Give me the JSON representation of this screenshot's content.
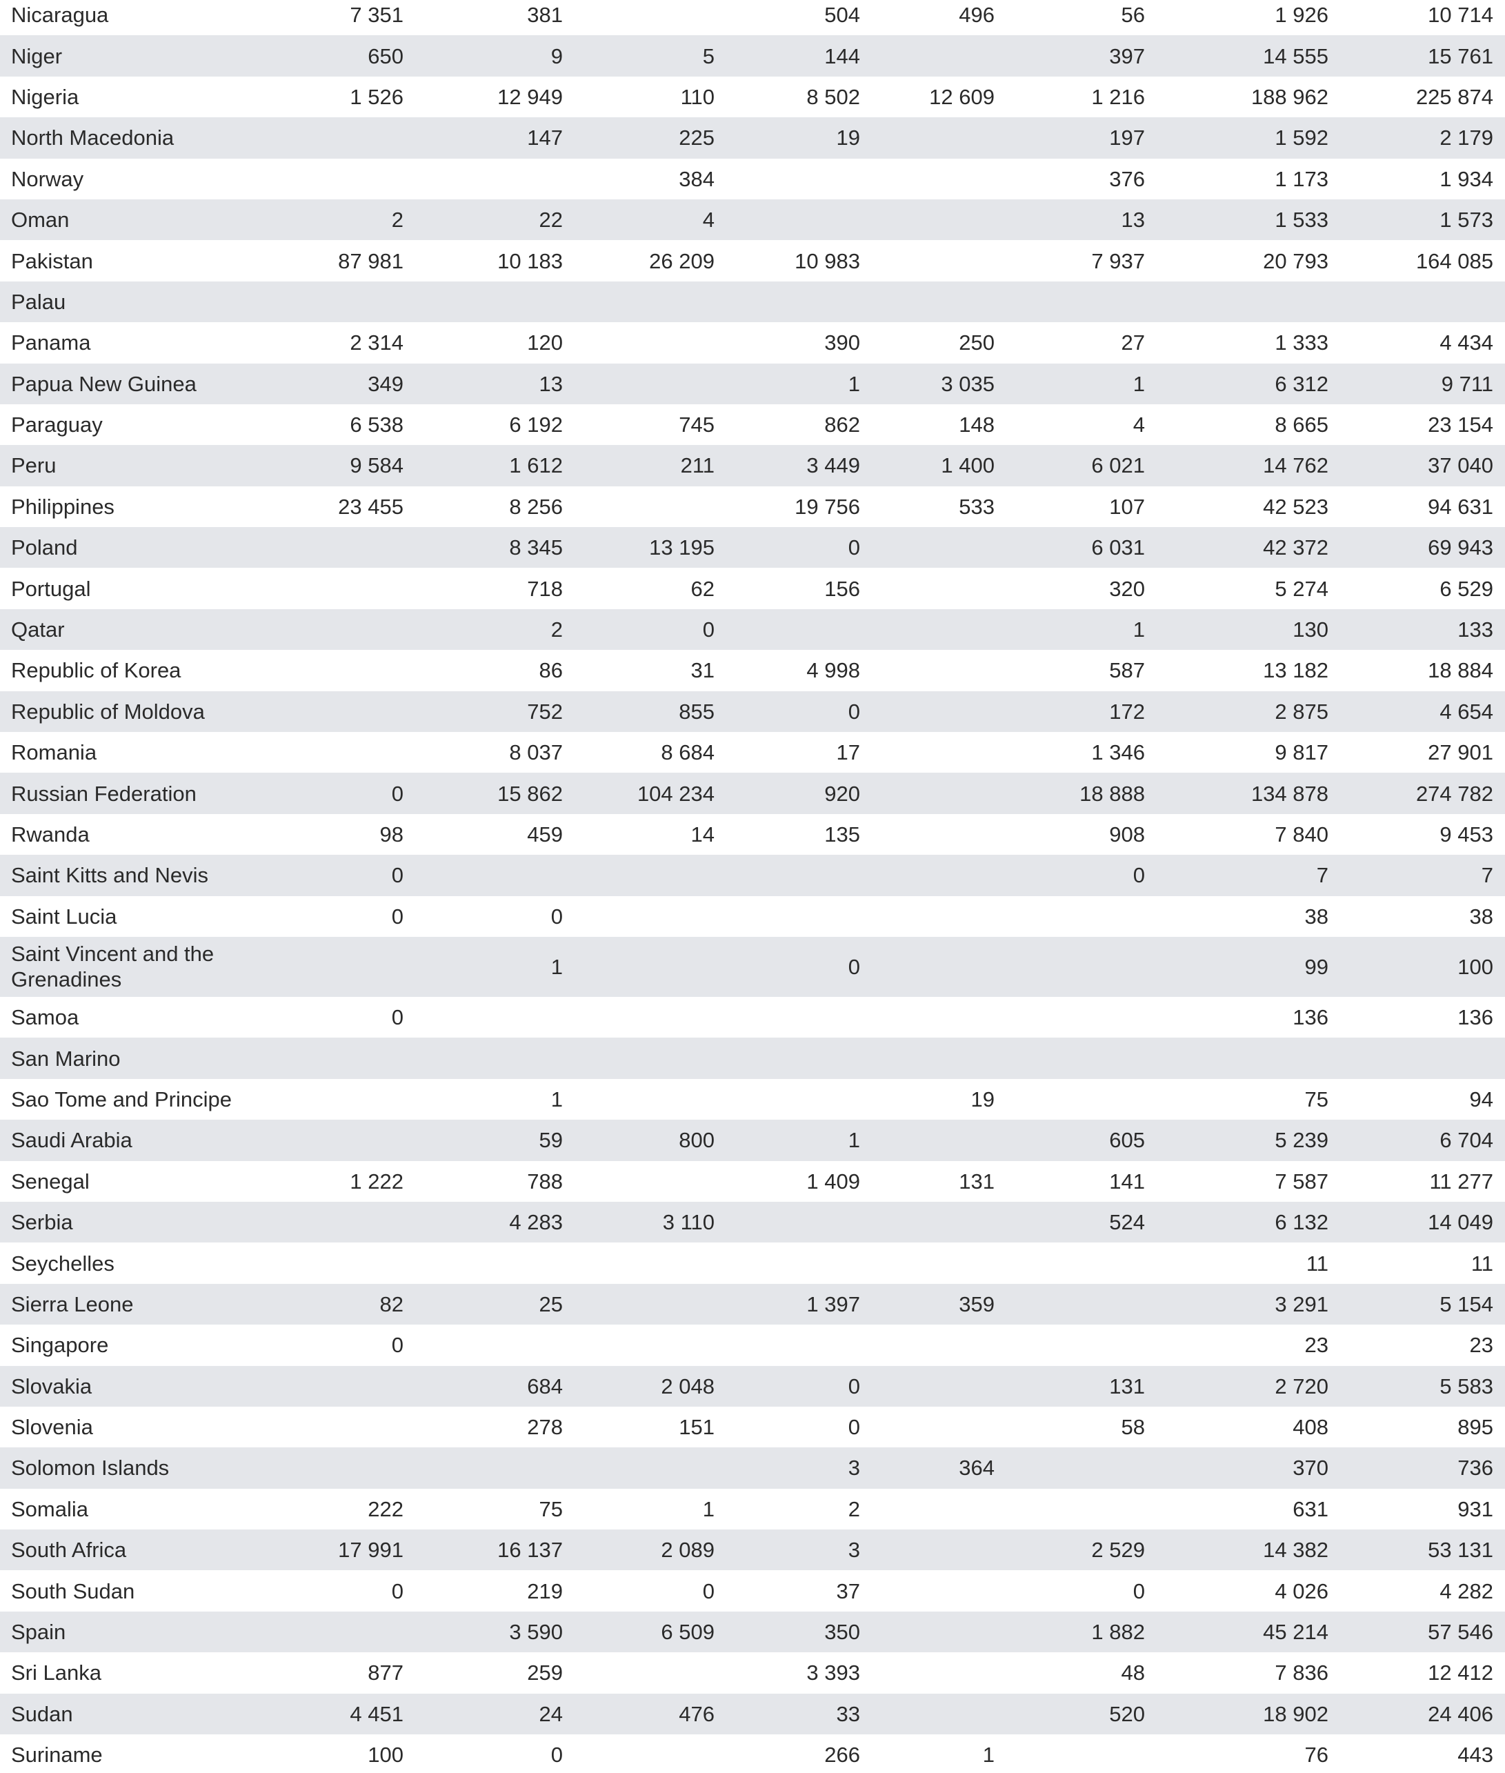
{
  "table": {
    "rows": [
      [
        "Nicaragua",
        "7 351",
        "381",
        null,
        "504",
        "496",
        "56",
        "1 926",
        "10 714"
      ],
      [
        "Niger",
        "650",
        "9",
        "5",
        "144",
        null,
        "397",
        "14 555",
        "15 761"
      ],
      [
        "Nigeria",
        "1 526",
        "12 949",
        "110",
        "8 502",
        "12 609",
        "1 216",
        "188 962",
        "225 874"
      ],
      [
        "North Macedonia",
        null,
        "147",
        "225",
        "19",
        null,
        "197",
        "1 592",
        "2 179"
      ],
      [
        "Norway",
        null,
        null,
        "384",
        null,
        null,
        "376",
        "1 173",
        "1 934"
      ],
      [
        "Oman",
        "2",
        "22",
        "4",
        null,
        null,
        "13",
        "1 533",
        "1 573"
      ],
      [
        "Pakistan",
        "87 981",
        "10 183",
        "26 209",
        "10 983",
        null,
        "7 937",
        "20 793",
        "164 085"
      ],
      [
        "Palau",
        null,
        null,
        null,
        null,
        null,
        null,
        null,
        null
      ],
      [
        "Panama",
        "2 314",
        "120",
        null,
        "390",
        "250",
        "27",
        "1 333",
        "4 434"
      ],
      [
        "Papua New Guinea",
        "349",
        "13",
        null,
        "1",
        "3 035",
        "1",
        "6 312",
        "9 711"
      ],
      [
        "Paraguay",
        "6 538",
        "6 192",
        "745",
        "862",
        "148",
        "4",
        "8 665",
        "23 154"
      ],
      [
        "Peru",
        "9 584",
        "1 612",
        "211",
        "3 449",
        "1 400",
        "6 021",
        "14 762",
        "37 040"
      ],
      [
        "Philippines",
        "23 455",
        "8 256",
        null,
        "19 756",
        "533",
        "107",
        "42 523",
        "94 631"
      ],
      [
        "Poland",
        null,
        "8 345",
        "13 195",
        "0",
        null,
        "6 031",
        "42 372",
        "69 943"
      ],
      [
        "Portugal",
        null,
        "718",
        "62",
        "156",
        null,
        "320",
        "5 274",
        "6 529"
      ],
      [
        "Qatar",
        null,
        "2",
        "0",
        null,
        null,
        "1",
        "130",
        "133"
      ],
      [
        "Republic of Korea",
        null,
        "86",
        "31",
        "4 998",
        null,
        "587",
        "13 182",
        "18 884"
      ],
      [
        "Republic of Moldova",
        null,
        "752",
        "855",
        "0",
        null,
        "172",
        "2 875",
        "4 654"
      ],
      [
        "Romania",
        null,
        "8 037",
        "8 684",
        "17",
        null,
        "1 346",
        "9 817",
        "27 901"
      ],
      [
        "Russian Federation",
        "0",
        "15 862",
        "104 234",
        "920",
        null,
        "18 888",
        "134 878",
        "274 782"
      ],
      [
        "Rwanda",
        "98",
        "459",
        "14",
        "135",
        null,
        "908",
        "7 840",
        "9 453"
      ],
      [
        "Saint Kitts and Nevis",
        "0",
        null,
        null,
        null,
        null,
        "0",
        "7",
        "7"
      ],
      [
        "Saint Lucia",
        "0",
        "0",
        null,
        null,
        null,
        null,
        "38",
        "38"
      ],
      [
        "Saint Vincent and the Grenadines",
        null,
        "1",
        null,
        "0",
        null,
        null,
        "99",
        "100"
      ],
      [
        "Samoa",
        "0",
        null,
        null,
        null,
        null,
        null,
        "136",
        "136"
      ],
      [
        "San Marino",
        null,
        null,
        null,
        null,
        null,
        null,
        null,
        null
      ],
      [
        "Sao Tome and Principe",
        null,
        "1",
        null,
        null,
        "19",
        null,
        "75",
        "94"
      ],
      [
        "Saudi Arabia",
        null,
        "59",
        "800",
        "1",
        null,
        "605",
        "5 239",
        "6 704"
      ],
      [
        "Senegal",
        "1 222",
        "788",
        null,
        "1 409",
        "131",
        "141",
        "7 587",
        "11 277"
      ],
      [
        "Serbia",
        null,
        "4 283",
        "3 110",
        null,
        null,
        "524",
        "6 132",
        "14 049"
      ],
      [
        "Seychelles",
        null,
        null,
        null,
        null,
        null,
        null,
        "11",
        "11"
      ],
      [
        "Sierra Leone",
        "82",
        "25",
        null,
        "1 397",
        "359",
        null,
        "3 291",
        "5 154"
      ],
      [
        "Singapore",
        "0",
        null,
        null,
        null,
        null,
        null,
        "23",
        "23"
      ],
      [
        "Slovakia",
        null,
        "684",
        "2 048",
        "0",
        null,
        "131",
        "2 720",
        "5 583"
      ],
      [
        "Slovenia",
        null,
        "278",
        "151",
        "0",
        null,
        "58",
        "408",
        "895"
      ],
      [
        "Solomon Islands",
        null,
        null,
        null,
        "3",
        "364",
        null,
        "370",
        "736"
      ],
      [
        "Somalia",
        "222",
        "75",
        "1",
        "2",
        null,
        null,
        "631",
        "931"
      ],
      [
        "South Africa",
        "17 991",
        "16 137",
        "2 089",
        "3",
        null,
        "2 529",
        "14 382",
        "53 131"
      ],
      [
        "South Sudan",
        "0",
        "219",
        "0",
        "37",
        null,
        "0",
        "4 026",
        "4 282"
      ],
      [
        "Spain",
        null,
        "3 590",
        "6 509",
        "350",
        null,
        "1 882",
        "45 214",
        "57 546"
      ],
      [
        "Sri Lanka",
        "877",
        "259",
        null,
        "3 393",
        null,
        "48",
        "7 836",
        "12 412"
      ],
      [
        "Sudan",
        "4 451",
        "24",
        "476",
        "33",
        null,
        "520",
        "18 902",
        "24 406"
      ],
      [
        "Suriname",
        "100",
        "0",
        null,
        "266",
        "1",
        null,
        "76",
        "443"
      ]
    ]
  }
}
